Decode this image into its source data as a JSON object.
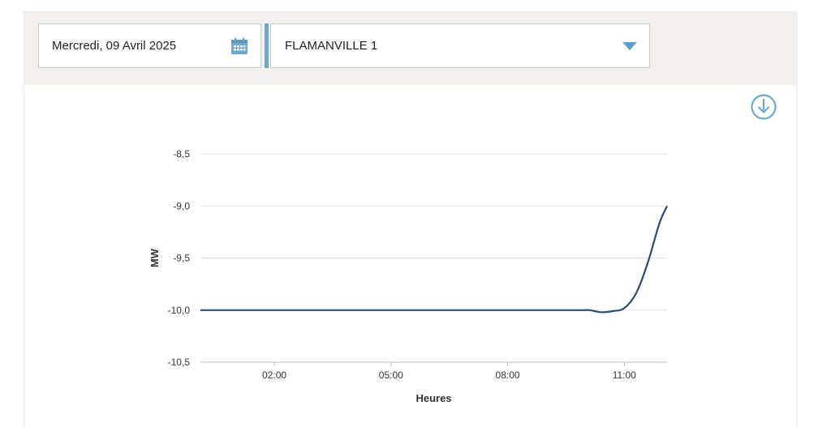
{
  "filters": {
    "date_value": "Mercredi, 09 Avril 2025",
    "unit_value": "FLAMANVILLE 1",
    "accent_color": "#6ea8cf"
  },
  "icons": {
    "calendar": "calendar-icon",
    "dropdown": "chevron-down-icon",
    "download": "download-icon"
  },
  "chart_data": {
    "type": "line",
    "xlabel": "Heures",
    "ylabel": "MW",
    "x_ticks": [
      "02:00",
      "05:00",
      "08:00",
      "11:00"
    ],
    "x_tick_values": [
      2,
      5,
      8,
      11
    ],
    "y_ticks": [
      "-8,5",
      "-9,0",
      "-9,5",
      "-10,0",
      "-10,5"
    ],
    "y_tick_values": [
      -8.5,
      -9.0,
      -9.5,
      -10.0,
      -10.5
    ],
    "xlim": [
      0.1,
      12.1
    ],
    "ylim": [
      -10.5,
      -8.5
    ],
    "grid": true,
    "line_color": "#2c4d70",
    "series": [
      {
        "x": [
          0.1,
          2,
          5,
          8,
          9.8,
          10.1,
          10.4,
          10.7,
          11.0,
          11.3,
          11.6,
          11.9,
          12.1
        ],
        "values": [
          -10.0,
          -10.0,
          -10.0,
          -10.0,
          -10.0,
          -10.0,
          -10.02,
          -10.01,
          -9.98,
          -9.84,
          -9.55,
          -9.17,
          -9.0
        ]
      }
    ]
  }
}
